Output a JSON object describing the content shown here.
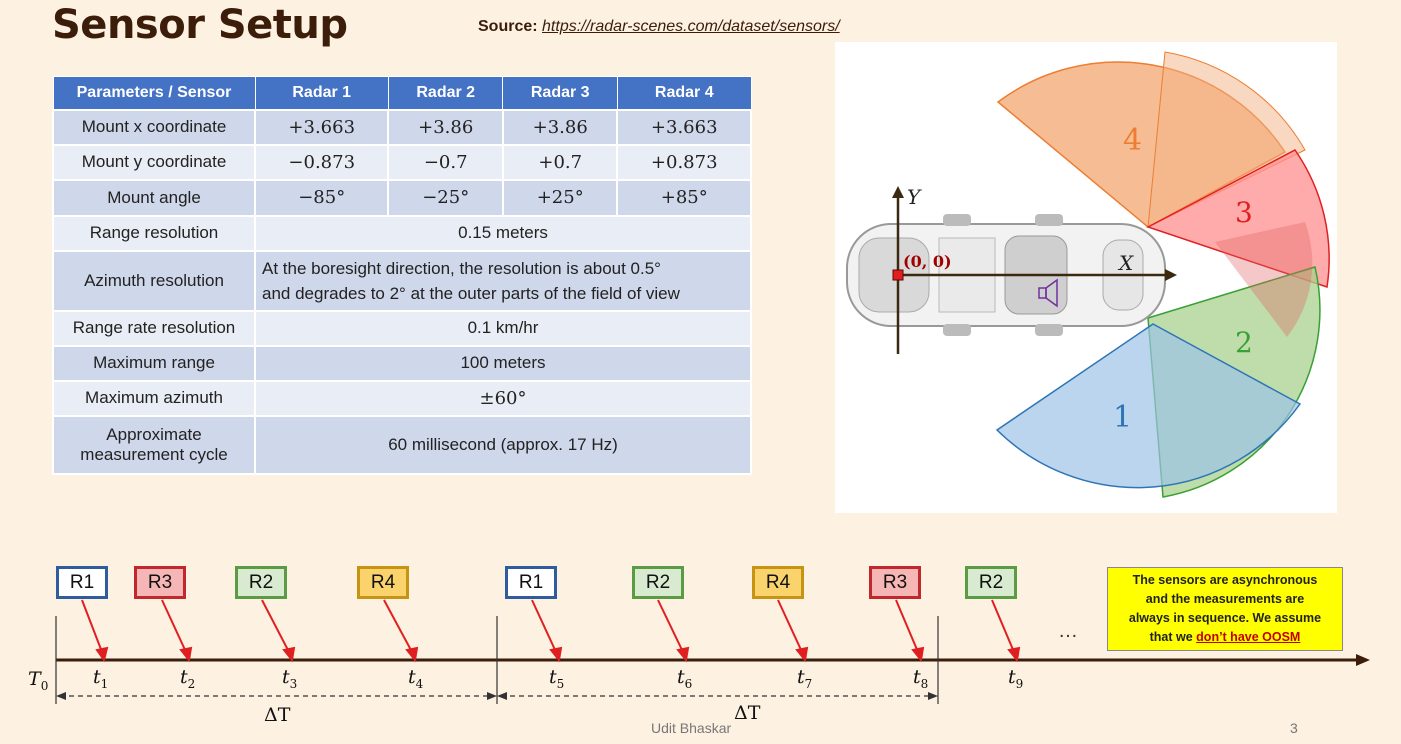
{
  "title": "Sensor Setup",
  "source": {
    "label": "Source",
    "url": "https://radar-scenes.com/dataset/sensors/"
  },
  "table": {
    "headers": [
      "Parameters / Sensor",
      "Radar 1",
      "Radar 2",
      "Radar 3",
      "Radar 4"
    ],
    "rows": [
      {
        "param": "Mount x coordinate",
        "values": [
          "+3.663",
          "+3.86",
          "+3.86",
          "+3.663"
        ]
      },
      {
        "param": "Mount y coordinate",
        "values": [
          "−0.873",
          "−0.7",
          "+0.7",
          "+0.873"
        ]
      },
      {
        "param": "Mount angle",
        "values": [
          "−85°",
          "−25°",
          "+25°",
          "+85°"
        ]
      },
      {
        "param": "Range resolution",
        "merged": "0.15 meters"
      },
      {
        "param": "Azimuth resolution",
        "merged_line1": "At the boresight direction, the resolution is about 0.5°",
        "merged_line2": "and degrades to 2° at the outer parts of the field of view"
      },
      {
        "param": "Range rate resolution",
        "merged": "0.1 km/hr"
      },
      {
        "param": "Maximum range",
        "merged": "100 meters"
      },
      {
        "param": "Maximum azimuth",
        "merged": "±60°"
      },
      {
        "param_line1": "Approximate",
        "param_line2": "measurement cycle",
        "merged": "60 millisecond (approx. 17 Hz)"
      }
    ]
  },
  "diagram": {
    "axis_y": "Y",
    "axis_x": "X",
    "origin": "(0, 0)",
    "sectors": [
      {
        "label": "1",
        "color": "#5b9bd5"
      },
      {
        "label": "2",
        "color": "#70ad47"
      },
      {
        "label": "3",
        "color": "#ff6b6b"
      },
      {
        "label": "4",
        "color": "#f4b183"
      }
    ]
  },
  "timeline": {
    "boxes": [
      "R1",
      "R3",
      "R2",
      "R4",
      "R1",
      "R2",
      "R4",
      "R3",
      "R2"
    ],
    "t0": "T",
    "t0_sub": "0",
    "ticks": [
      {
        "t": "t",
        "sub": "1"
      },
      {
        "t": "t",
        "sub": "2"
      },
      {
        "t": "t",
        "sub": "3"
      },
      {
        "t": "t",
        "sub": "4"
      },
      {
        "t": "t",
        "sub": "5"
      },
      {
        "t": "t",
        "sub": "6"
      },
      {
        "t": "t",
        "sub": "7"
      },
      {
        "t": "t",
        "sub": "8"
      },
      {
        "t": "t",
        "sub": "9"
      }
    ],
    "delta1": "ΔT",
    "delta2": "ΔT",
    "ellipsis": "…",
    "note_line1": "The sensors are asynchronous",
    "note_line2": "and the measurements are",
    "note_line3": "always in sequence. We assume",
    "note_line4": "that we",
    "note_highlight": "don’t have OOSM"
  },
  "footer": {
    "author": "Udit Bhaskar",
    "page": "3"
  }
}
